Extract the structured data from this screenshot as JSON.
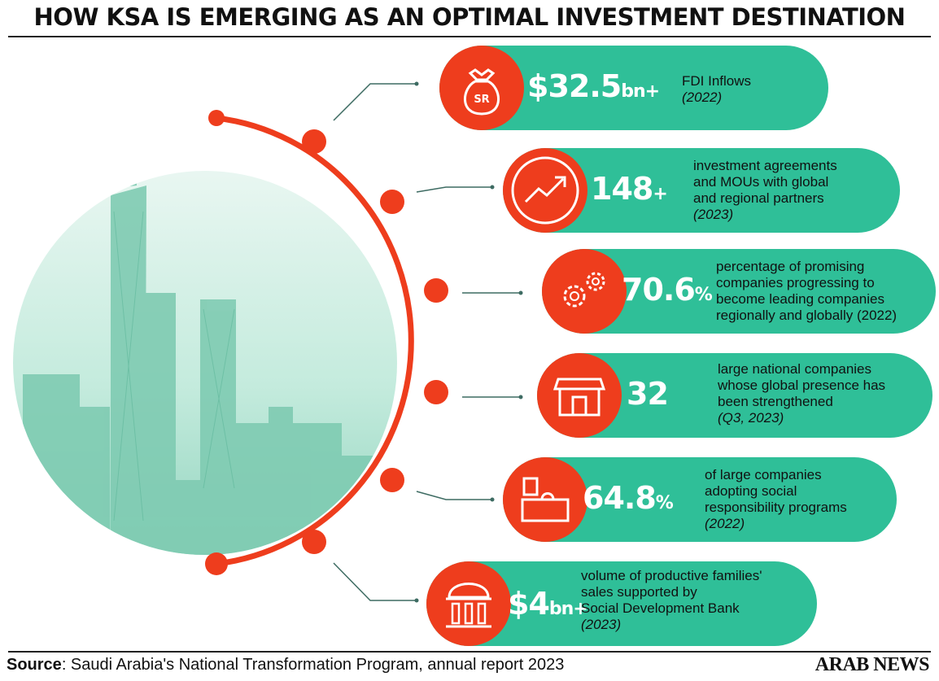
{
  "title": "HOW KSA IS EMERGING AS AN OPTIMAL INVESTMENT DESTINATION",
  "colors": {
    "teal": "#2fbf98",
    "orange": "#ee3d1d",
    "photo_tint": "#b6e6d6"
  },
  "items": [
    {
      "icon": "money-bag-icon",
      "icon_text": "SR",
      "value": "$32.5",
      "suffix": "bn+",
      "lines": [
        "FDI Inflows"
      ],
      "year": "(2022)"
    },
    {
      "icon": "growth-chart-icon",
      "value": "148",
      "suffix": "+",
      "lines": [
        "investment agreements",
        "and MOUs with global",
        "and regional partners"
      ],
      "year": "(2023)"
    },
    {
      "icon": "gears-icon",
      "value": "70.6",
      "suffix": "%",
      "lines": [
        "percentage of promising",
        "companies progressing to",
        "become leading companies",
        "regionally and globally (2022)"
      ],
      "year": ""
    },
    {
      "icon": "storefront-icon",
      "value": "32",
      "suffix": "",
      "lines": [
        "large national companies",
        "whose global presence has",
        "been strengthened"
      ],
      "year": "(Q3, 2023)"
    },
    {
      "icon": "desk-icon",
      "value": "64.8",
      "suffix": "%",
      "lines": [
        "of large companies",
        "adopting social",
        "responsibility programs"
      ],
      "year": "(2022)"
    },
    {
      "icon": "bank-icon",
      "value": "$4",
      "suffix": "bn+",
      "lines": [
        "volume of productive families'",
        "sales supported by",
        "Social Development Bank"
      ],
      "year": "(2023)"
    }
  ],
  "footer": {
    "source_label": "Source",
    "source_text": ": Saudi Arabia's National Transformation Program, annual report 2023"
  },
  "brand": "ARAB NEWS"
}
